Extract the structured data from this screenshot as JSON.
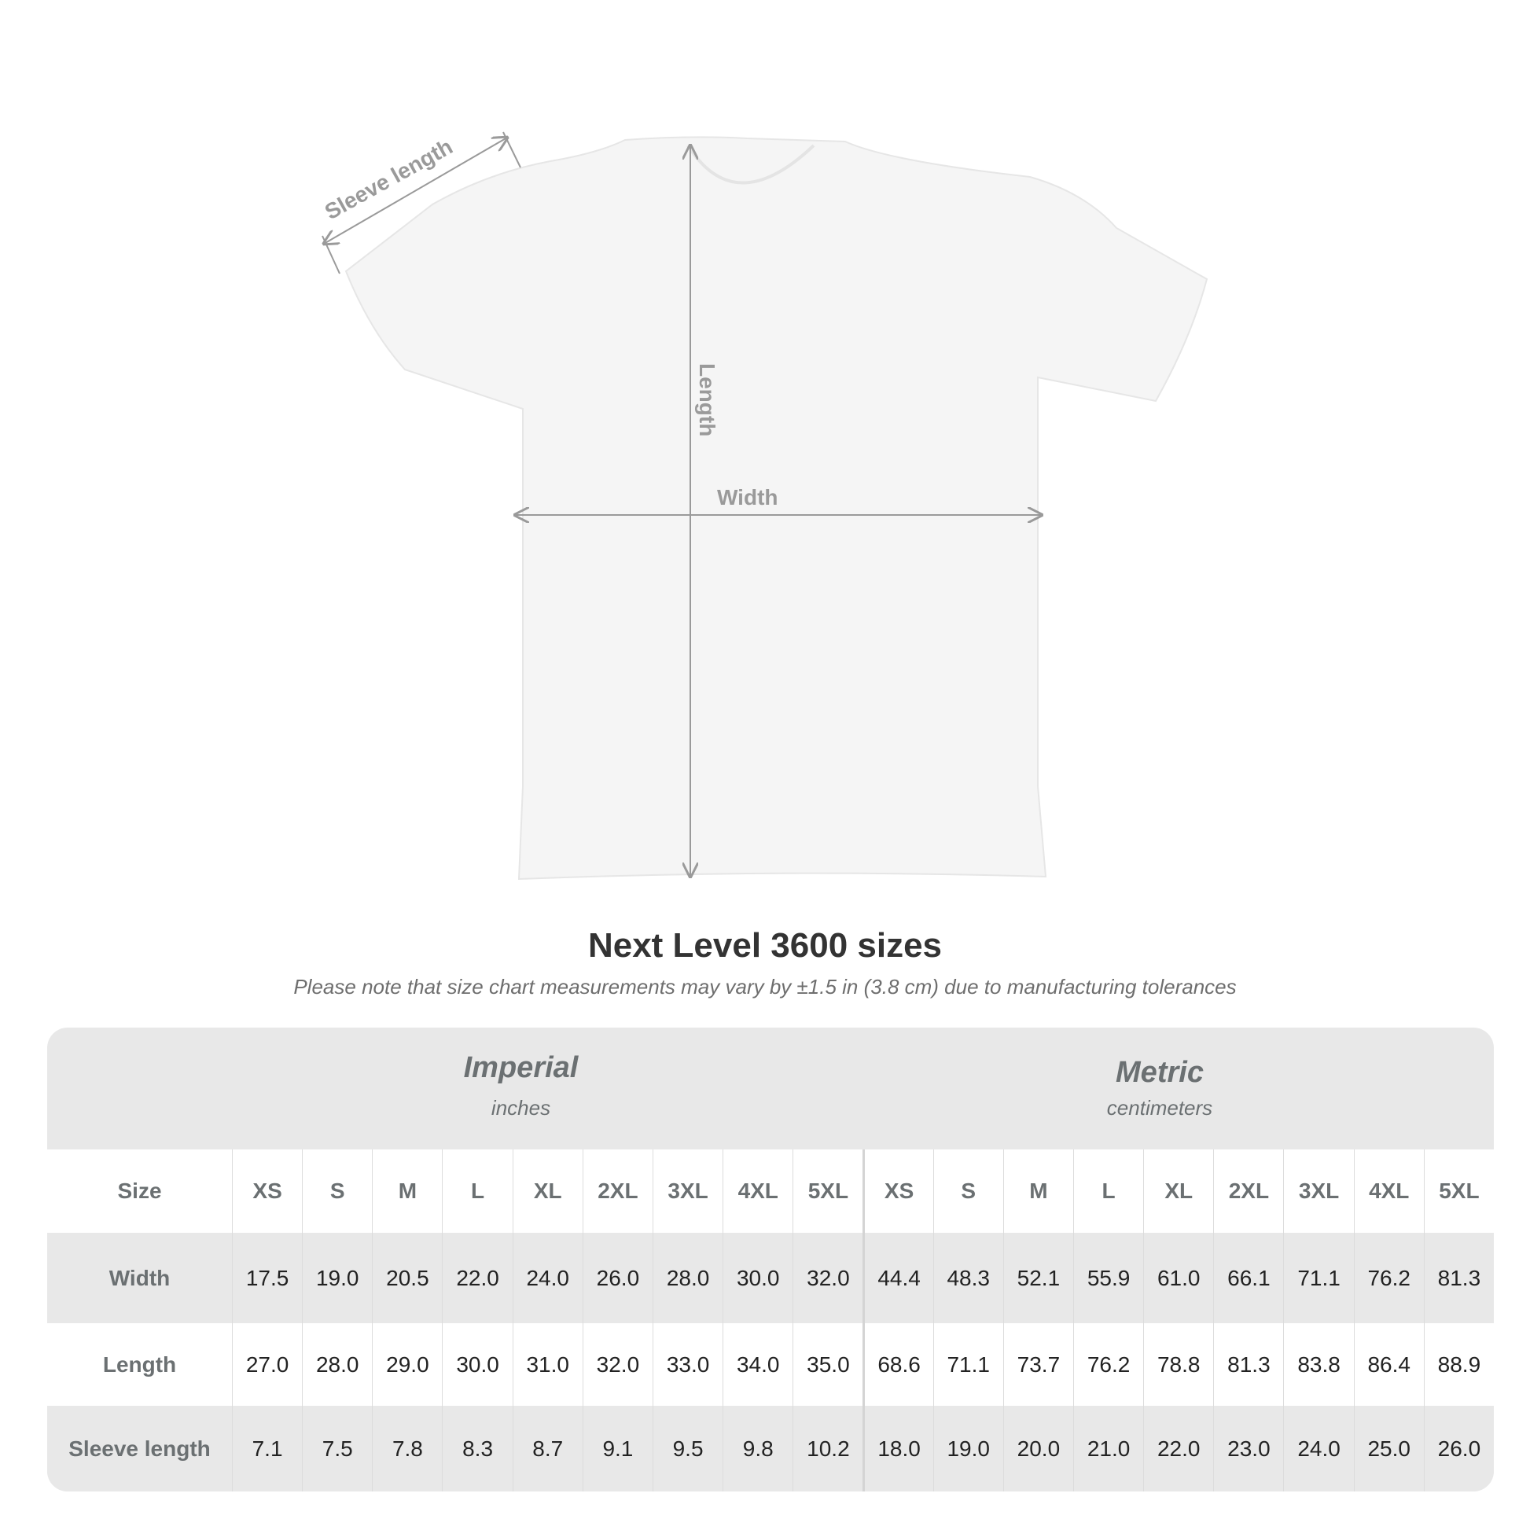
{
  "diagram": {
    "labels": {
      "sleeve": "Sleeve length",
      "length": "Length",
      "width": "Width"
    }
  },
  "title": "Next Level 3600 sizes",
  "subtitle": "Please note that size chart measurements may vary by ±1.5 in (3.8 cm) due to manufacturing tolerances",
  "table": {
    "imperial": {
      "name": "Imperial",
      "unit": "inches"
    },
    "metric": {
      "name": "Metric",
      "unit": "centimeters"
    },
    "size_label": "Size",
    "sizes": [
      "XS",
      "S",
      "M",
      "L",
      "XL",
      "2XL",
      "3XL",
      "4XL",
      "5XL"
    ],
    "rows": [
      {
        "label": "Width",
        "imperial": [
          "17.5",
          "19.0",
          "20.5",
          "22.0",
          "24.0",
          "26.0",
          "28.0",
          "30.0",
          "32.0"
        ],
        "metric": [
          "44.4",
          "48.3",
          "52.1",
          "55.9",
          "61.0",
          "66.1",
          "71.1",
          "76.2",
          "81.3"
        ]
      },
      {
        "label": "Length",
        "imperial": [
          "27.0",
          "28.0",
          "29.0",
          "30.0",
          "31.0",
          "32.0",
          "33.0",
          "34.0",
          "35.0"
        ],
        "metric": [
          "68.6",
          "71.1",
          "73.7",
          "76.2",
          "78.8",
          "81.3",
          "83.8",
          "86.4",
          "88.9"
        ]
      },
      {
        "label": "Sleeve length",
        "imperial": [
          "7.1",
          "7.5",
          "7.8",
          "8.3",
          "8.7",
          "9.1",
          "9.5",
          "9.8",
          "10.2"
        ],
        "metric": [
          "18.0",
          "19.0",
          "20.0",
          "21.0",
          "22.0",
          "23.0",
          "24.0",
          "25.0",
          "26.0"
        ]
      }
    ]
  },
  "colors": {
    "label_gray": "#6b7072",
    "table_bg": "#e8e8e8",
    "measure_line": "#9a9a9a"
  }
}
